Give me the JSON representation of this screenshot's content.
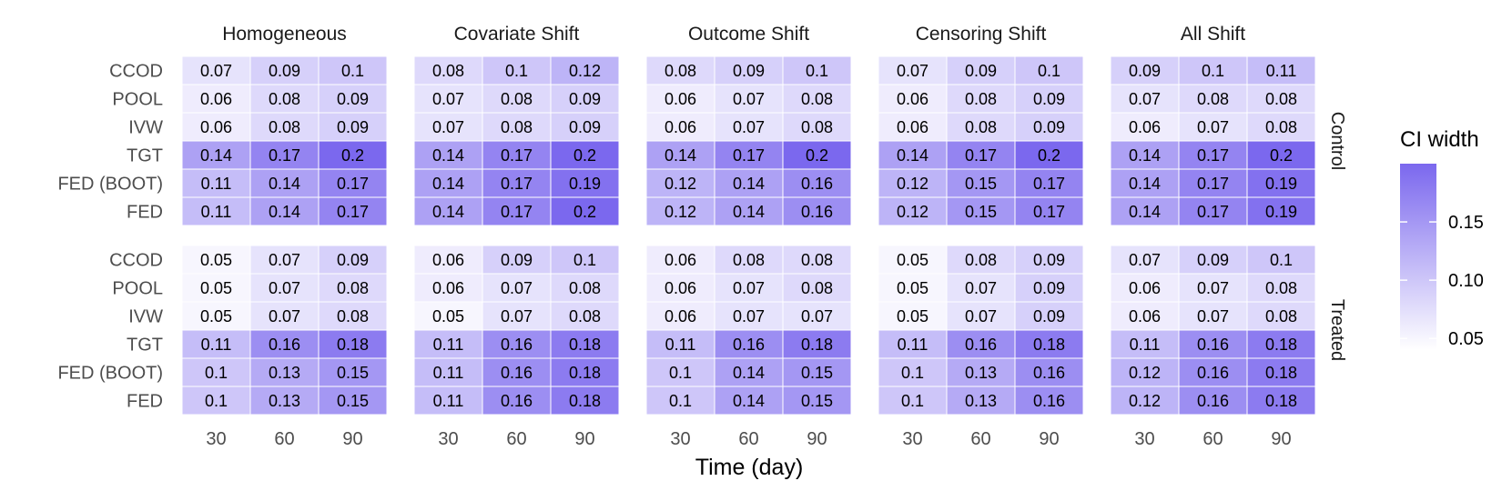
{
  "chart_data": {
    "type": "heatmap",
    "facets": [
      "Homogeneous",
      "Covariate Shift",
      "Outcome Shift",
      "Censoring Shift",
      "All Shift"
    ],
    "groups": [
      "Control",
      "Treated"
    ],
    "rows": [
      "CCOD",
      "POOL",
      "IVW",
      "TGT",
      "FED (BOOT)",
      "FED"
    ],
    "x": [
      "30",
      "60",
      "90"
    ],
    "xlabel": "Time (day)",
    "values": {
      "Control": [
        [
          [
            0.07,
            0.09,
            0.1
          ],
          [
            0.06,
            0.08,
            0.09
          ],
          [
            0.06,
            0.08,
            0.09
          ],
          [
            0.14,
            0.17,
            0.2
          ],
          [
            0.11,
            0.14,
            0.17
          ],
          [
            0.11,
            0.14,
            0.17
          ]
        ],
        [
          [
            0.08,
            0.1,
            0.12
          ],
          [
            0.07,
            0.08,
            0.09
          ],
          [
            0.07,
            0.08,
            0.09
          ],
          [
            0.14,
            0.17,
            0.2
          ],
          [
            0.14,
            0.17,
            0.19
          ],
          [
            0.14,
            0.17,
            0.2
          ]
        ],
        [
          [
            0.08,
            0.09,
            0.1
          ],
          [
            0.06,
            0.07,
            0.08
          ],
          [
            0.06,
            0.07,
            0.08
          ],
          [
            0.14,
            0.17,
            0.2
          ],
          [
            0.12,
            0.14,
            0.16
          ],
          [
            0.12,
            0.14,
            0.16
          ]
        ],
        [
          [
            0.07,
            0.09,
            0.1
          ],
          [
            0.06,
            0.08,
            0.09
          ],
          [
            0.06,
            0.08,
            0.09
          ],
          [
            0.14,
            0.17,
            0.2
          ],
          [
            0.12,
            0.15,
            0.17
          ],
          [
            0.12,
            0.15,
            0.17
          ]
        ],
        [
          [
            0.09,
            0.1,
            0.11
          ],
          [
            0.07,
            0.08,
            0.08
          ],
          [
            0.06,
            0.07,
            0.08
          ],
          [
            0.14,
            0.17,
            0.2
          ],
          [
            0.14,
            0.17,
            0.19
          ],
          [
            0.14,
            0.17,
            0.19
          ]
        ]
      ],
      "Treated": [
        [
          [
            0.05,
            0.07,
            0.09
          ],
          [
            0.05,
            0.07,
            0.08
          ],
          [
            0.05,
            0.07,
            0.08
          ],
          [
            0.11,
            0.16,
            0.18
          ],
          [
            0.1,
            0.13,
            0.15
          ],
          [
            0.1,
            0.13,
            0.15
          ]
        ],
        [
          [
            0.06,
            0.09,
            0.1
          ],
          [
            0.06,
            0.07,
            0.08
          ],
          [
            0.05,
            0.07,
            0.08
          ],
          [
            0.11,
            0.16,
            0.18
          ],
          [
            0.11,
            0.16,
            0.18
          ],
          [
            0.11,
            0.16,
            0.18
          ]
        ],
        [
          [
            0.06,
            0.08,
            0.08
          ],
          [
            0.06,
            0.07,
            0.08
          ],
          [
            0.06,
            0.07,
            0.07
          ],
          [
            0.11,
            0.16,
            0.18
          ],
          [
            0.1,
            0.14,
            0.15
          ],
          [
            0.1,
            0.14,
            0.15
          ]
        ],
        [
          [
            0.05,
            0.08,
            0.09
          ],
          [
            0.05,
            0.07,
            0.09
          ],
          [
            0.05,
            0.07,
            0.09
          ],
          [
            0.11,
            0.16,
            0.18
          ],
          [
            0.1,
            0.13,
            0.16
          ],
          [
            0.1,
            0.13,
            0.16
          ]
        ],
        [
          [
            0.07,
            0.09,
            0.1
          ],
          [
            0.06,
            0.07,
            0.08
          ],
          [
            0.06,
            0.07,
            0.08
          ],
          [
            0.11,
            0.16,
            0.18
          ],
          [
            0.12,
            0.16,
            0.18
          ],
          [
            0.12,
            0.16,
            0.18
          ]
        ]
      ]
    },
    "legend": {
      "title": "CI width",
      "ticks": [
        0.05,
        0.1,
        0.15
      ],
      "tick_labels": [
        "0.05",
        "0.10",
        "0.15"
      ],
      "range": [
        0.04,
        0.2
      ],
      "low_color": "#ffffff",
      "high_color": "#7b68ee",
      "placement": "right"
    }
  }
}
